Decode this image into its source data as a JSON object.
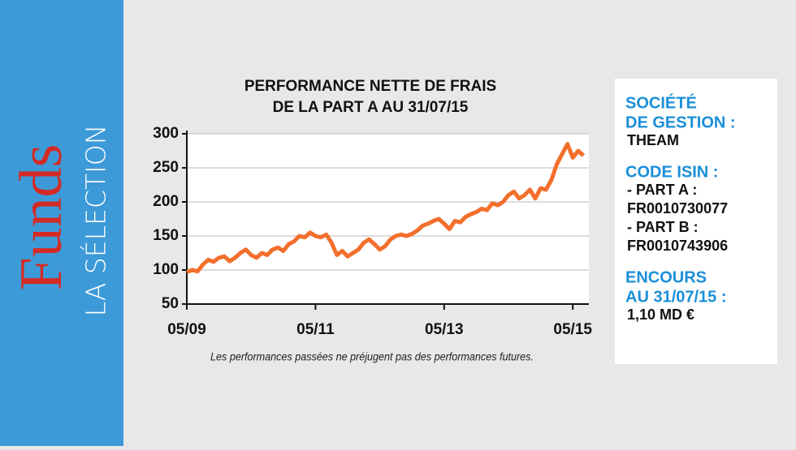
{
  "sidebar": {
    "brand": "Funds",
    "subtitle": "LA SÉLECTION"
  },
  "chart_data": {
    "type": "line",
    "title": [
      "PERFORMANCE NETTE DE FRAIS",
      "DE LA PART A AU 31/07/15"
    ],
    "note": "Les performances passées ne préjugent pas des performances futures.",
    "color": "#f36f2c",
    "grid": true,
    "x": [
      "2009-05",
      "2009-06",
      "2009-07",
      "2009-08",
      "2009-09",
      "2009-10",
      "2009-11",
      "2009-12",
      "2010-01",
      "2010-02",
      "2010-03",
      "2010-04",
      "2010-05",
      "2010-06",
      "2010-07",
      "2010-08",
      "2010-09",
      "2010-10",
      "2010-11",
      "2010-12",
      "2011-01",
      "2011-02",
      "2011-03",
      "2011-04",
      "2011-05",
      "2011-06",
      "2011-07",
      "2011-08",
      "2011-09",
      "2011-10",
      "2011-11",
      "2011-12",
      "2012-01",
      "2012-02",
      "2012-03",
      "2012-04",
      "2012-05",
      "2012-06",
      "2012-07",
      "2012-08",
      "2012-09",
      "2012-10",
      "2012-11",
      "2012-12",
      "2013-01",
      "2013-02",
      "2013-03",
      "2013-04",
      "2013-05",
      "2013-06",
      "2013-07",
      "2013-08",
      "2013-09",
      "2013-10",
      "2013-11",
      "2013-12",
      "2014-01",
      "2014-02",
      "2014-03",
      "2014-04",
      "2014-05",
      "2014-06",
      "2014-07",
      "2014-08",
      "2014-09",
      "2014-10",
      "2014-11",
      "2014-12",
      "2015-01",
      "2015-02",
      "2015-03",
      "2015-04",
      "2015-05",
      "2015-06",
      "2015-07"
    ],
    "values": [
      97,
      100,
      98,
      108,
      115,
      112,
      118,
      120,
      113,
      118,
      125,
      130,
      122,
      118,
      125,
      122,
      130,
      133,
      128,
      138,
      142,
      150,
      148,
      155,
      150,
      148,
      152,
      140,
      122,
      128,
      120,
      125,
      130,
      140,
      145,
      138,
      130,
      135,
      145,
      150,
      152,
      150,
      153,
      158,
      165,
      168,
      172,
      175,
      168,
      160,
      172,
      170,
      178,
      182,
      185,
      190,
      188,
      198,
      195,
      200,
      210,
      215,
      205,
      210,
      218,
      205,
      220,
      218,
      232,
      255,
      270,
      285,
      265,
      275,
      268
    ],
    "xlim": [
      "2009-05",
      "2015-08"
    ],
    "xticks": [
      {
        "value": "2009-05",
        "label": "05/09"
      },
      {
        "value": "2011-05",
        "label": "05/11"
      },
      {
        "value": "2013-05",
        "label": "05/13"
      },
      {
        "value": "2015-05",
        "label": "05/15"
      }
    ],
    "ylim": [
      50,
      300
    ],
    "yticks": [
      50,
      100,
      150,
      200,
      250,
      300
    ]
  },
  "info_panel": {
    "sections": [
      {
        "heading": [
          "SOCIÉTÉ",
          "DE GESTION :"
        ],
        "lines": [
          "THEAM"
        ]
      },
      {
        "heading": [
          "CODE ISIN :"
        ],
        "lines": [
          "- PART A :",
          "FR0010730077",
          "- PART B :",
          "FR0010743906"
        ]
      },
      {
        "heading": [
          "ENCOURS",
          "AU 31/07/15 :"
        ],
        "lines": [
          " 1,10 MD €"
        ]
      }
    ]
  }
}
